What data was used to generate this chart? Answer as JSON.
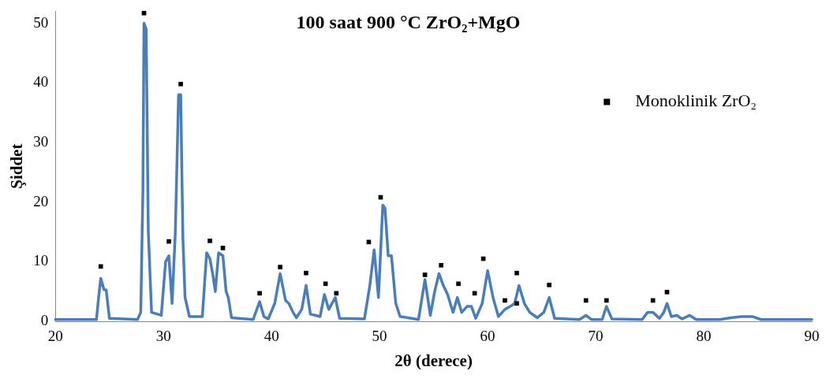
{
  "chart_data": {
    "type": "line",
    "title": "100 saat 900 °C ZrO₂+MgO",
    "xlabel": "2θ (derece)",
    "ylabel": "Şiddet",
    "xlim": [
      20,
      90
    ],
    "xticks": [
      20,
      30,
      40,
      50,
      60,
      70,
      80,
      90
    ],
    "ylim": [
      0,
      52
    ],
    "yticks": [
      0,
      10,
      20,
      30,
      40,
      50
    ],
    "grid": false,
    "legend": "top right",
    "series": [
      {
        "type": "line",
        "color": "#4a7ebb",
        "marker": "none",
        "x": [
          20,
          23.8,
          24.0,
          24.2,
          24.5,
          24.7,
          25.0,
          27.6,
          27.9,
          28.1,
          28.2,
          28.4,
          28.6,
          28.9,
          29.8,
          30.2,
          30.5,
          30.8,
          31.1,
          31.4,
          31.6,
          31.8,
          32.0,
          32.4,
          33.6,
          34.0,
          34.3,
          34.6,
          34.8,
          35.1,
          35.5,
          35.8,
          36.0,
          36.3,
          38.3,
          38.9,
          39.3,
          39.7,
          40.3,
          40.8,
          41.3,
          41.6,
          42.0,
          42.3,
          42.8,
          43.2,
          43.6,
          44.5,
          44.9,
          45.3,
          45.9,
          46.3,
          48.6,
          49.1,
          49.5,
          49.9,
          50.3,
          50.5,
          50.8,
          51.1,
          51.5,
          51.9,
          53.6,
          54.2,
          54.7,
          55.1,
          55.5,
          55.9,
          56.3,
          56.8,
          57.2,
          57.6,
          58.1,
          58.5,
          58.9,
          59.5,
          60.0,
          60.5,
          61.0,
          61.6,
          62.1,
          62.5,
          62.9,
          63.4,
          63.9,
          64.6,
          65.2,
          65.7,
          66.2,
          68.5,
          69.1,
          69.6,
          70.6,
          71.0,
          71.5,
          74.3,
          74.8,
          75.3,
          75.9,
          76.3,
          76.6,
          77.0,
          77.5,
          78.0,
          78.7,
          79.3,
          81.5,
          82.5,
          83.5,
          84.5,
          85.3,
          90
        ],
        "values": [
          0.3,
          0.3,
          4,
          7.2,
          5.3,
          5.3,
          0.5,
          0.3,
          1.5,
          22,
          50,
          49,
          15,
          1.5,
          1,
          10,
          11,
          3,
          15,
          38,
          38,
          14,
          4,
          0.8,
          0.8,
          11.5,
          10.5,
          7.5,
          5,
          11.5,
          11,
          5,
          4,
          0.6,
          0.3,
          3.3,
          0.8,
          0.4,
          3,
          8,
          3.5,
          3,
          1.5,
          0.6,
          2,
          6,
          1.2,
          0.8,
          4.5,
          2,
          4,
          0.5,
          0.4,
          6,
          12,
          4,
          19.5,
          19,
          11,
          11,
          3,
          0.8,
          0.3,
          7,
          1,
          5,
          8,
          6,
          4.5,
          1.5,
          4,
          1.5,
          2.5,
          2.5,
          0.5,
          3,
          8.5,
          4,
          0.8,
          2,
          2.5,
          3,
          6,
          3,
          1.5,
          0.6,
          1.5,
          4,
          0.5,
          0.3,
          1,
          0.3,
          0.3,
          2.5,
          0.4,
          0.3,
          1.5,
          1.5,
          0.5,
          1.5,
          3,
          0.8,
          1,
          0.4,
          1,
          0.3,
          0.3,
          0.6,
          0.8,
          0.8,
          0.3,
          0.3
        ]
      },
      {
        "type": "scatter",
        "name": "Monoklinik ZrO₂",
        "color": "#000000",
        "marker": "square",
        "x": [
          24.2,
          28.2,
          30.5,
          31.6,
          34.3,
          35.5,
          38.9,
          40.8,
          43.2,
          45.0,
          46.0,
          49.0,
          50.1,
          54.2,
          55.7,
          57.3,
          58.8,
          59.6,
          61.6,
          62.7,
          62.7,
          65.7,
          69.1,
          71.0,
          75.3,
          76.6
        ],
        "values": [
          9.2,
          51.7,
          13.4,
          39.8,
          13.5,
          12.3,
          4.7,
          9.1,
          8.1,
          6.3,
          4.7,
          13.3,
          20.8,
          7.8,
          9.4,
          6.3,
          4.7,
          10.5,
          3.5,
          3.0,
          8.1,
          6.1,
          3.5,
          3.5,
          3.5,
          4.9
        ]
      }
    ]
  }
}
